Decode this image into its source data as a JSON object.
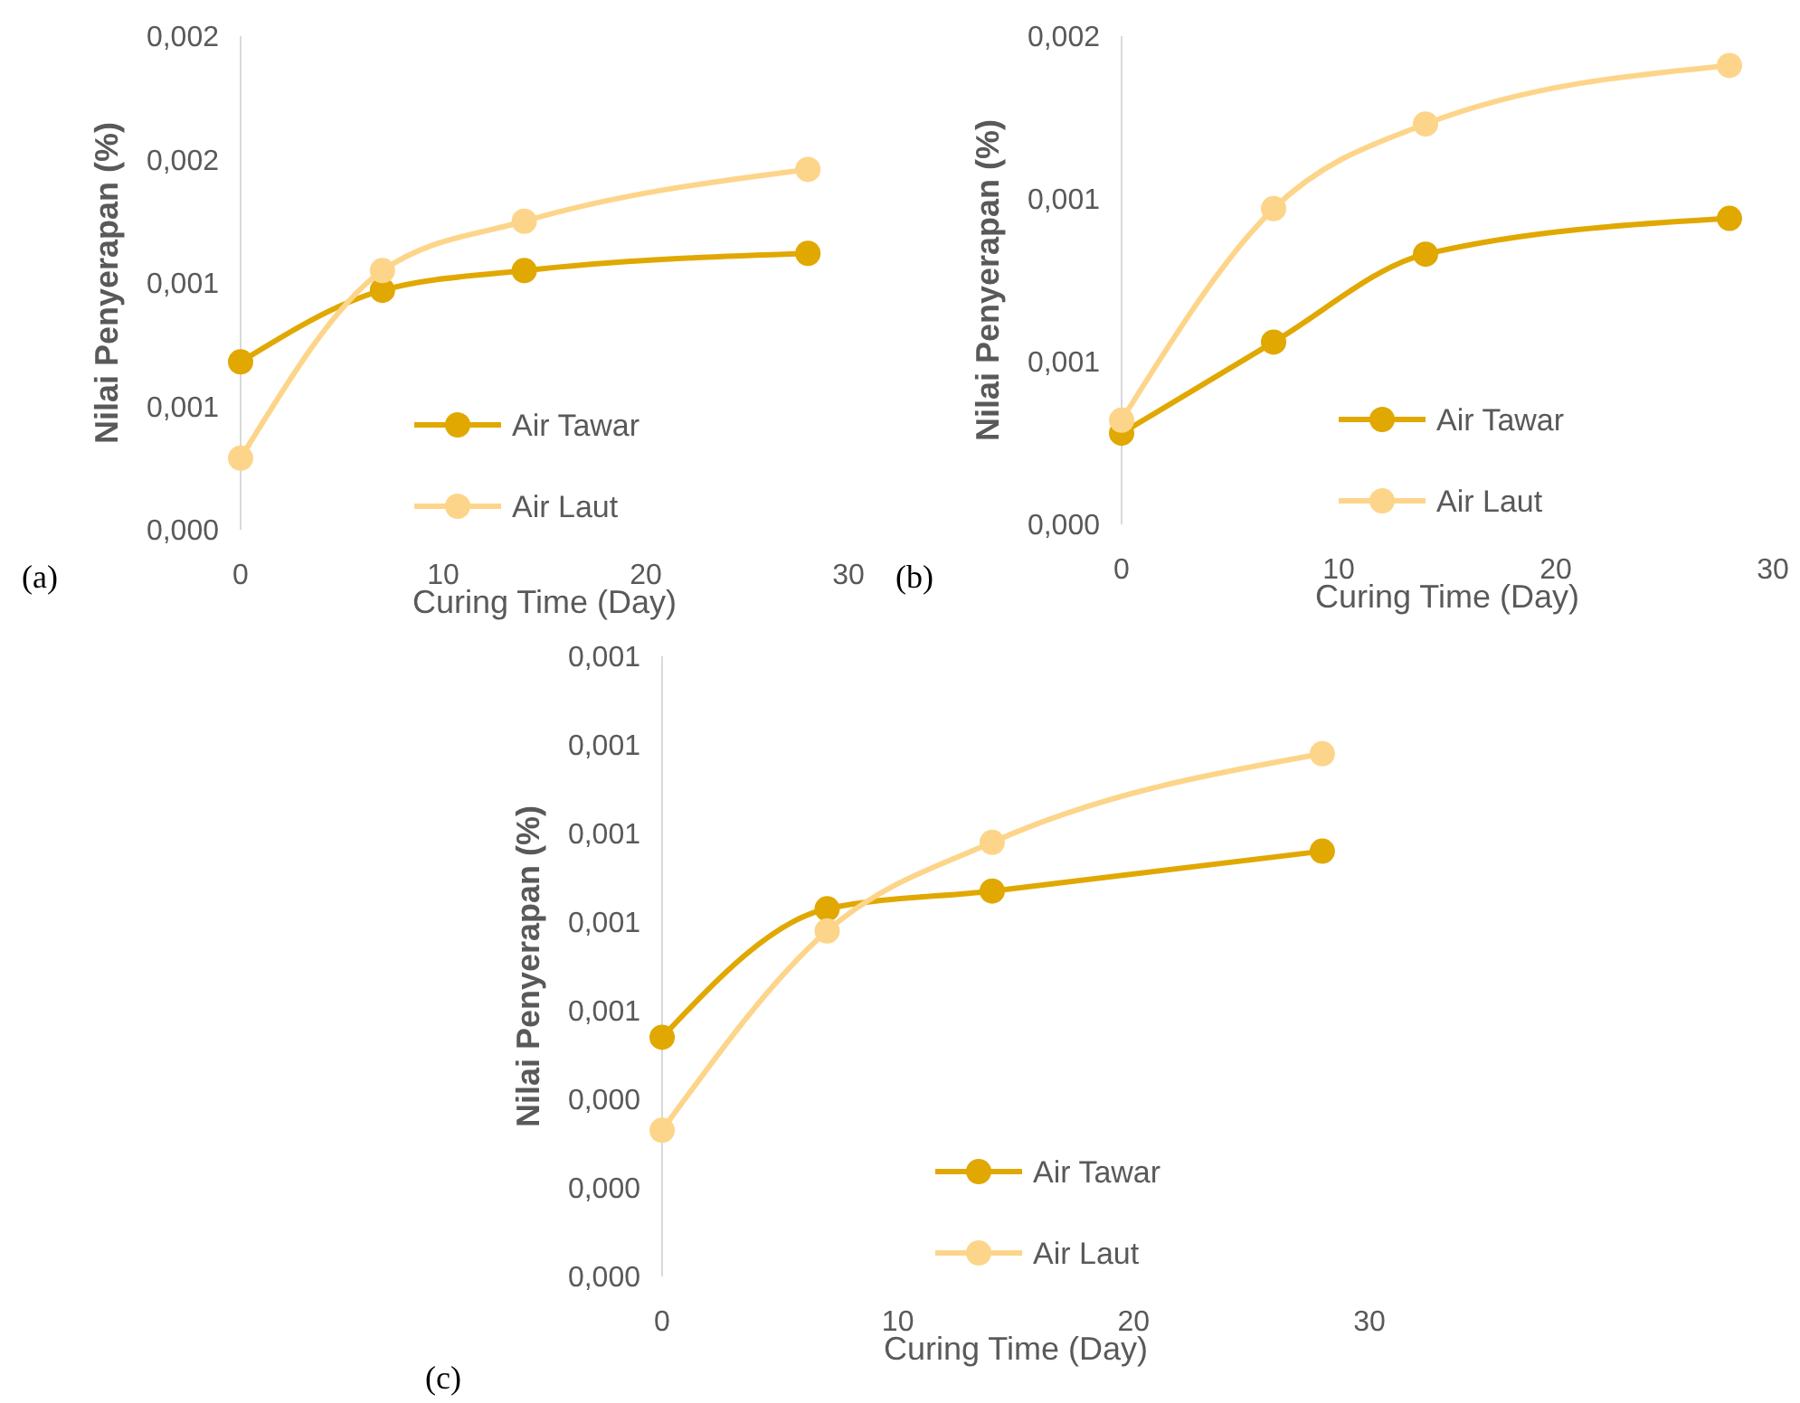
{
  "chart_data": [
    {
      "type": "line",
      "xlabel": "Curing Time (Day)",
      "ylabel": "Nilai Penyerapan (%)",
      "x": [
        0,
        7,
        14,
        28
      ],
      "xlim": [
        0,
        30
      ],
      "xticks": [
        0,
        10,
        20,
        30
      ],
      "ylim": [
        0,
        0.002
      ],
      "yticks": [
        {
          "value": 0,
          "label": "0,000"
        },
        {
          "value": 0.0005,
          "label": "0,001"
        },
        {
          "value": 0.001,
          "label": "0,001"
        },
        {
          "value": 0.0015,
          "label": "0,002"
        },
        {
          "value": 0.002,
          "label": "0,002"
        }
      ],
      "marker": "circle",
      "grid": false,
      "legend": "bottom right",
      "annotations": [
        "(a)"
      ],
      "series": [
        {
          "name": "Air Tawar",
          "color": "#e0a800",
          "values": [
            0.00068,
            0.00097,
            0.00105,
            0.00112
          ]
        },
        {
          "name": "Air Laut",
          "color": "#fdd58a",
          "values": [
            0.00029,
            0.00105,
            0.00125,
            0.00146
          ]
        }
      ]
    },
    {
      "type": "line",
      "xlabel": "Curing Time (Day)",
      "ylabel": "Nilai Penyerapan (%)",
      "x": [
        0,
        7,
        14,
        28
      ],
      "xlim": [
        0,
        30
      ],
      "xticks": [
        0,
        10,
        20,
        30
      ],
      "ylim": [
        0,
        0.0015
      ],
      "yticks": [
        {
          "value": 0,
          "label": "0,000"
        },
        {
          "value": 0.0005,
          "label": "0,001"
        },
        {
          "value": 0.001,
          "label": "0,001"
        },
        {
          "value": 0.0015,
          "label": "0,002"
        }
      ],
      "marker": "circle",
      "grid": false,
      "legend": "bottom right",
      "annotations": [
        "(b)"
      ],
      "series": [
        {
          "name": "Air Tawar",
          "color": "#e0a800",
          "values": [
            0.00028,
            0.00056,
            0.00083,
            0.00094
          ]
        },
        {
          "name": "Air Laut",
          "color": "#fdd58a",
          "values": [
            0.00032,
            0.00097,
            0.00123,
            0.00141
          ]
        }
      ]
    },
    {
      "type": "line",
      "xlabel": "Curing Time (Day)",
      "ylabel": "Nilai Penyerapan (%)",
      "x": [
        0,
        7,
        14,
        28
      ],
      "xlim": [
        0,
        30
      ],
      "xticks": [
        0,
        10,
        20,
        30
      ],
      "ylim": [
        0,
        0.0014
      ],
      "yticks": [
        {
          "value": 0,
          "label": "0,000"
        },
        {
          "value": 0.0002,
          "label": "0,000"
        },
        {
          "value": 0.0004,
          "label": "0,000"
        },
        {
          "value": 0.0006,
          "label": "0,001"
        },
        {
          "value": 0.0008,
          "label": "0,001"
        },
        {
          "value": 0.001,
          "label": "0,001"
        },
        {
          "value": 0.0012,
          "label": "0,001"
        },
        {
          "value": 0.0014,
          "label": "0,001"
        }
      ],
      "marker": "circle",
      "grid": false,
      "legend": "bottom right",
      "annotations": [
        "(c)"
      ],
      "series": [
        {
          "name": "Air Tawar",
          "color": "#e0a800",
          "values": [
            0.00054,
            0.00083,
            0.00087,
            0.00096
          ]
        },
        {
          "name": "Air Laut",
          "color": "#fdd58a",
          "values": [
            0.00033,
            0.00078,
            0.00098,
            0.00118
          ]
        }
      ]
    }
  ]
}
